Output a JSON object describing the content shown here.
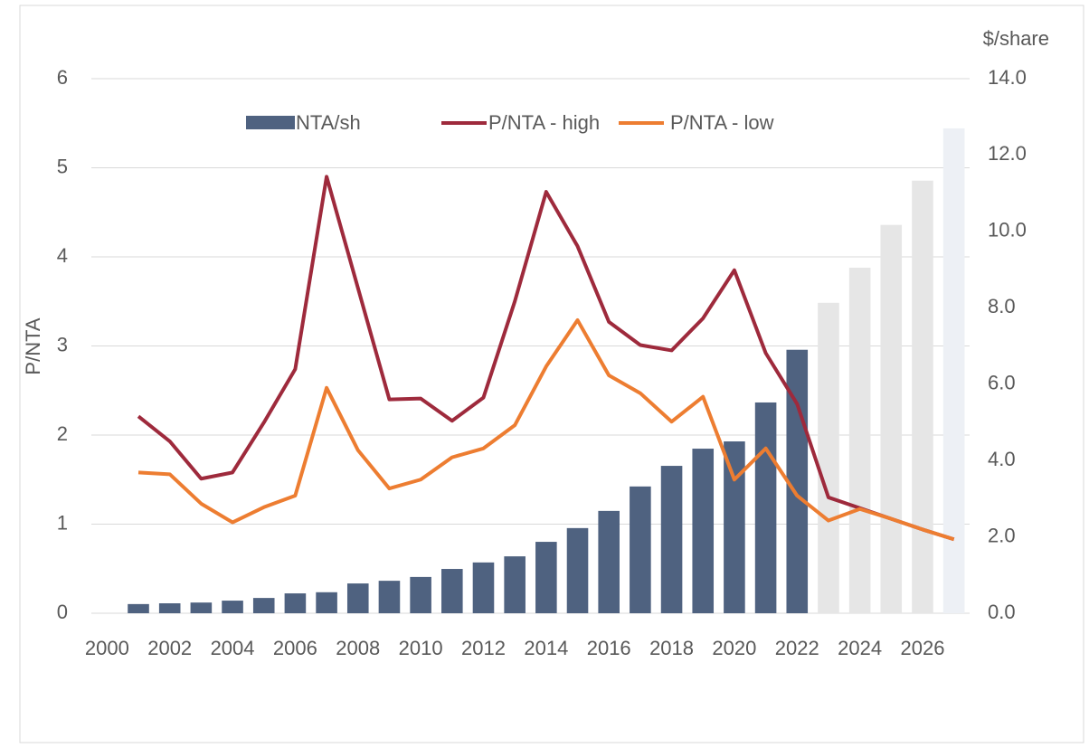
{
  "chart_data": {
    "type": "bar_line",
    "x": [
      2001,
      2002,
      2003,
      2004,
      2005,
      2006,
      2007,
      2008,
      2009,
      2010,
      2011,
      2012,
      2013,
      2014,
      2015,
      2016,
      2017,
      2018,
      2019,
      2020,
      2021,
      2022,
      2023,
      2024,
      2025,
      2026,
      2027
    ],
    "xlim": [
      1999.5,
      2027.5
    ],
    "xticks": [
      {
        "value": 2000,
        "label": "2000"
      },
      {
        "value": 2002,
        "label": "2002"
      },
      {
        "value": 2004,
        "label": "2004"
      },
      {
        "value": 2006,
        "label": "2006"
      },
      {
        "value": 2008,
        "label": "2008"
      },
      {
        "value": 2010,
        "label": "2010"
      },
      {
        "value": 2012,
        "label": "2012"
      },
      {
        "value": 2014,
        "label": "2014"
      },
      {
        "value": 2016,
        "label": "2016"
      },
      {
        "value": 2018,
        "label": "2018"
      },
      {
        "value": 2020,
        "label": "2020"
      },
      {
        "value": 2022,
        "label": "2022"
      },
      {
        "value": 2024,
        "label": "2024"
      },
      {
        "value": 2026,
        "label": "2026"
      }
    ],
    "ylabel": "P/NTA",
    "y2label": "$/share",
    "ylim": [
      0,
      6
    ],
    "yticks": [
      0,
      1,
      2,
      3,
      4,
      5,
      6
    ],
    "y2lim": [
      0,
      14
    ],
    "y2ticks": [
      {
        "value": 0,
        "label": "0.0"
      },
      {
        "value": 2,
        "label": "2.0"
      },
      {
        "value": 4,
        "label": "4.0"
      },
      {
        "value": 6,
        "label": "6.0"
      },
      {
        "value": 8,
        "label": "8.0"
      },
      {
        "value": 10,
        "label": "10.0"
      },
      {
        "value": 12,
        "label": "12.0"
      },
      {
        "value": 14,
        "label": "14.0"
      }
    ],
    "grid": true,
    "legend": "top",
    "series": [
      {
        "name": "NTA/sh",
        "type": "bar",
        "axis": "y2",
        "color": "#4f6280",
        "colors": [
          "#4f6280",
          "#4f6280",
          "#4f6280",
          "#4f6280",
          "#4f6280",
          "#4f6280",
          "#4f6280",
          "#4f6280",
          "#4f6280",
          "#4f6280",
          "#4f6280",
          "#4f6280",
          "#4f6280",
          "#4f6280",
          "#4f6280",
          "#4f6280",
          "#4f6280",
          "#4f6280",
          "#4f6280",
          "#4f6280",
          "#4f6280",
          "#4f6280",
          "#e6e6e6",
          "#e6e6e6",
          "#e6e6e6",
          "#e6e6e6",
          "#edf0f5"
        ],
        "values": [
          0.24,
          0.26,
          0.28,
          0.33,
          0.4,
          0.52,
          0.55,
          0.78,
          0.85,
          0.95,
          1.16,
          1.33,
          1.49,
          1.87,
          2.23,
          2.68,
          3.32,
          3.86,
          4.31,
          4.5,
          5.52,
          6.9,
          8.13,
          9.05,
          10.17,
          11.33,
          12.7
        ]
      },
      {
        "name": "P/NTA - high",
        "type": "line",
        "color": "#9e2a3c",
        "values": [
          2.21,
          1.93,
          1.51,
          1.58,
          2.14,
          2.74,
          4.9,
          3.65,
          2.4,
          2.41,
          2.16,
          2.42,
          3.5,
          4.73,
          4.12,
          3.27,
          3.01,
          2.95,
          3.31,
          3.85,
          2.92,
          2.35,
          1.3,
          1.18,
          1.06,
          0.94,
          0.83
        ]
      },
      {
        "name": "P/NTA - low",
        "type": "line",
        "color": "#ed7d31",
        "values": [
          1.58,
          1.56,
          1.23,
          1.02,
          1.19,
          1.32,
          2.53,
          1.83,
          1.4,
          1.5,
          1.75,
          1.85,
          2.11,
          2.77,
          3.29,
          2.67,
          2.47,
          2.15,
          2.43,
          1.5,
          1.85,
          1.32,
          1.04,
          1.17,
          1.06,
          0.94,
          0.83
        ]
      }
    ]
  }
}
